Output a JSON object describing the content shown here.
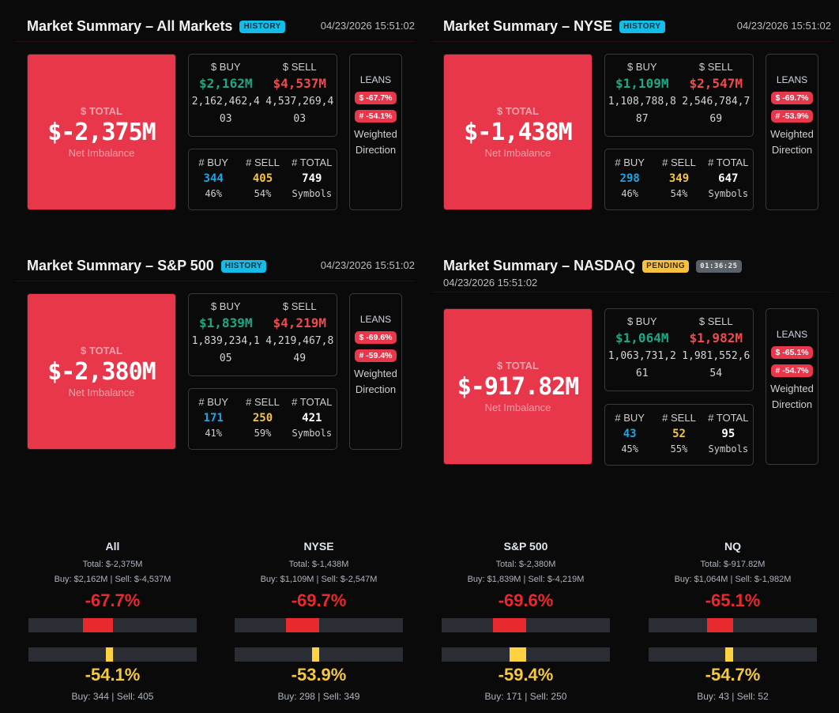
{
  "panels": [
    {
      "id": "all",
      "title": "Market Summary – All Markets",
      "status_badge": "HISTORY",
      "timestamp": "04/23/2026 15:51:02",
      "total": {
        "label": "$ TOTAL",
        "value": "$-2,375M",
        "sub": "Net Imbalance"
      },
      "buy": {
        "label": "$ BUY",
        "value": "$2,162M",
        "raw": "2,162,462,403"
      },
      "sell": {
        "label": "$ SELL",
        "value": "$4,537M",
        "raw": "4,537,269,403"
      },
      "counts": {
        "buy": {
          "label": "# BUY",
          "value": "344",
          "pct": "46%"
        },
        "sell": {
          "label": "# SELL",
          "value": "405",
          "pct": "54%"
        },
        "total": {
          "label": "# TOTAL",
          "value": "749",
          "sub": "Symbols"
        }
      },
      "leans": {
        "label": "LEANS",
        "dollar": "$ -67.7%",
        "count": "# -54.1%",
        "desc": "Weighted Direction"
      }
    },
    {
      "id": "nyse",
      "title": "Market Summary – NYSE",
      "status_badge": "HISTORY",
      "timestamp": "04/23/2026 15:51:02",
      "total": {
        "label": "$ TOTAL",
        "value": "$-1,438M",
        "sub": "Net Imbalance"
      },
      "buy": {
        "label": "$ BUY",
        "value": "$1,109M",
        "raw": "1,108,788,887"
      },
      "sell": {
        "label": "$ SELL",
        "value": "$2,547M",
        "raw": "2,546,784,769"
      },
      "counts": {
        "buy": {
          "label": "# BUY",
          "value": "298",
          "pct": "46%"
        },
        "sell": {
          "label": "# SELL",
          "value": "349",
          "pct": "54%"
        },
        "total": {
          "label": "# TOTAL",
          "value": "647",
          "sub": "Symbols"
        }
      },
      "leans": {
        "label": "LEANS",
        "dollar": "$ -69.7%",
        "count": "# -53.9%",
        "desc": "Weighted Direction"
      }
    },
    {
      "id": "sp500",
      "title": "Market Summary – S&P 500",
      "status_badge": "HISTORY",
      "timestamp": "04/23/2026 15:51:02",
      "total": {
        "label": "$ TOTAL",
        "value": "$-2,380M",
        "sub": "Net Imbalance"
      },
      "buy": {
        "label": "$ BUY",
        "value": "$1,839M",
        "raw": "1,839,234,105"
      },
      "sell": {
        "label": "$ SELL",
        "value": "$4,219M",
        "raw": "4,219,467,849"
      },
      "counts": {
        "buy": {
          "label": "# BUY",
          "value": "171",
          "pct": "41%"
        },
        "sell": {
          "label": "# SELL",
          "value": "250",
          "pct": "59%"
        },
        "total": {
          "label": "# TOTAL",
          "value": "421",
          "sub": "Symbols"
        }
      },
      "leans": {
        "label": "LEANS",
        "dollar": "$ -69.6%",
        "count": "# -59.4%",
        "desc": "Weighted Direction"
      }
    },
    {
      "id": "nasdaq",
      "title": "Market Summary – NASDAQ",
      "status_badge": "PENDING",
      "timer": "01:36:25",
      "timestamp": "04/23/2026 15:51:02",
      "total": {
        "label": "$ TOTAL",
        "value": "$-917.82M",
        "sub": "Net Imbalance"
      },
      "buy": {
        "label": "$ BUY",
        "value": "$1,064M",
        "raw": "1,063,731,261"
      },
      "sell": {
        "label": "$ SELL",
        "value": "$1,982M",
        "raw": "1,981,552,654"
      },
      "counts": {
        "buy": {
          "label": "# BUY",
          "value": "43",
          "pct": "45%"
        },
        "sell": {
          "label": "# SELL",
          "value": "52",
          "pct": "55%"
        },
        "total": {
          "label": "# TOTAL",
          "value": "95",
          "sub": "Symbols"
        }
      },
      "leans": {
        "label": "LEANS",
        "dollar": "$ -65.1%",
        "count": "# -54.7%",
        "desc": "Weighted Direction"
      }
    }
  ],
  "gauges": [
    {
      "name": "All",
      "total": "Total: $-2,375M",
      "buy": "Buy: $2,162M",
      "sell": "Sell: $-4,537M",
      "dollar_pct": "-67.7%",
      "dollar_value": -67.7,
      "count_pct": "-54.1%",
      "count_value": -54.1,
      "buy_count": "Buy: 344",
      "sell_count": "Sell: 405"
    },
    {
      "name": "NYSE",
      "total": "Total: $-1,438M",
      "buy": "Buy: $1,109M",
      "sell": "Sell: $-2,547M",
      "dollar_pct": "-69.7%",
      "dollar_value": -69.7,
      "count_pct": "-53.9%",
      "count_value": -53.9,
      "buy_count": "Buy: 298",
      "sell_count": "Sell: 349"
    },
    {
      "name": "S&P 500",
      "total": "Total: $-2,380M",
      "buy": "Buy: $1,839M",
      "sell": "Sell: $-4,219M",
      "dollar_pct": "-69.6%",
      "dollar_value": -69.6,
      "count_pct": "-59.4%",
      "count_value": -59.4,
      "buy_count": "Buy: 171",
      "sell_count": "Sell: 250"
    },
    {
      "name": "NQ",
      "total": "Total: $-917.82M",
      "buy": "Buy: $1,064M",
      "sell": "Sell: $-1,982M",
      "dollar_pct": "-65.1%",
      "dollar_value": -65.1,
      "count_pct": "-54.7%",
      "count_value": -54.7,
      "buy_count": "Buy: 43",
      "sell_count": "Sell: 52"
    }
  ],
  "separator": "|",
  "colors": {
    "total_card": "#e8374b",
    "buy": "#1ea784",
    "sell": "#ef4a4f",
    "count_buy": "#1aa6e6",
    "count_sell": "#f5c542",
    "gauge_red": "#e8292e",
    "gauge_yellow": "#ffd23f",
    "history_badge": "#13bde8",
    "pending_badge": "#f6c23e"
  }
}
